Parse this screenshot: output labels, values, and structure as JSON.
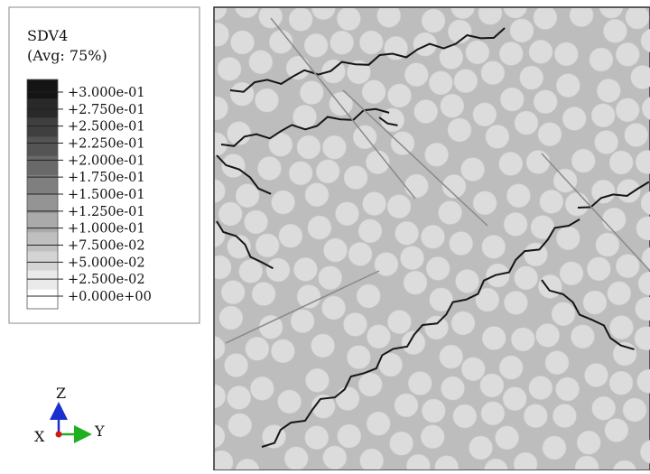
{
  "legend": {
    "variable": "SDV4",
    "averaging": "(Avg: 75%)",
    "labels": [
      "+3.000e-01",
      "+2.750e-01",
      "+2.500e-01",
      "+2.250e-01",
      "+2.000e-01",
      "+1.750e-01",
      "+1.500e-01",
      "+1.250e-01",
      "+1.000e-01",
      "+7.500e-02",
      "+5.000e-02",
      "+2.500e-02",
      "+0.000e+00"
    ]
  },
  "triad": {
    "z": "Z",
    "x": "X",
    "y": "Y"
  }
}
